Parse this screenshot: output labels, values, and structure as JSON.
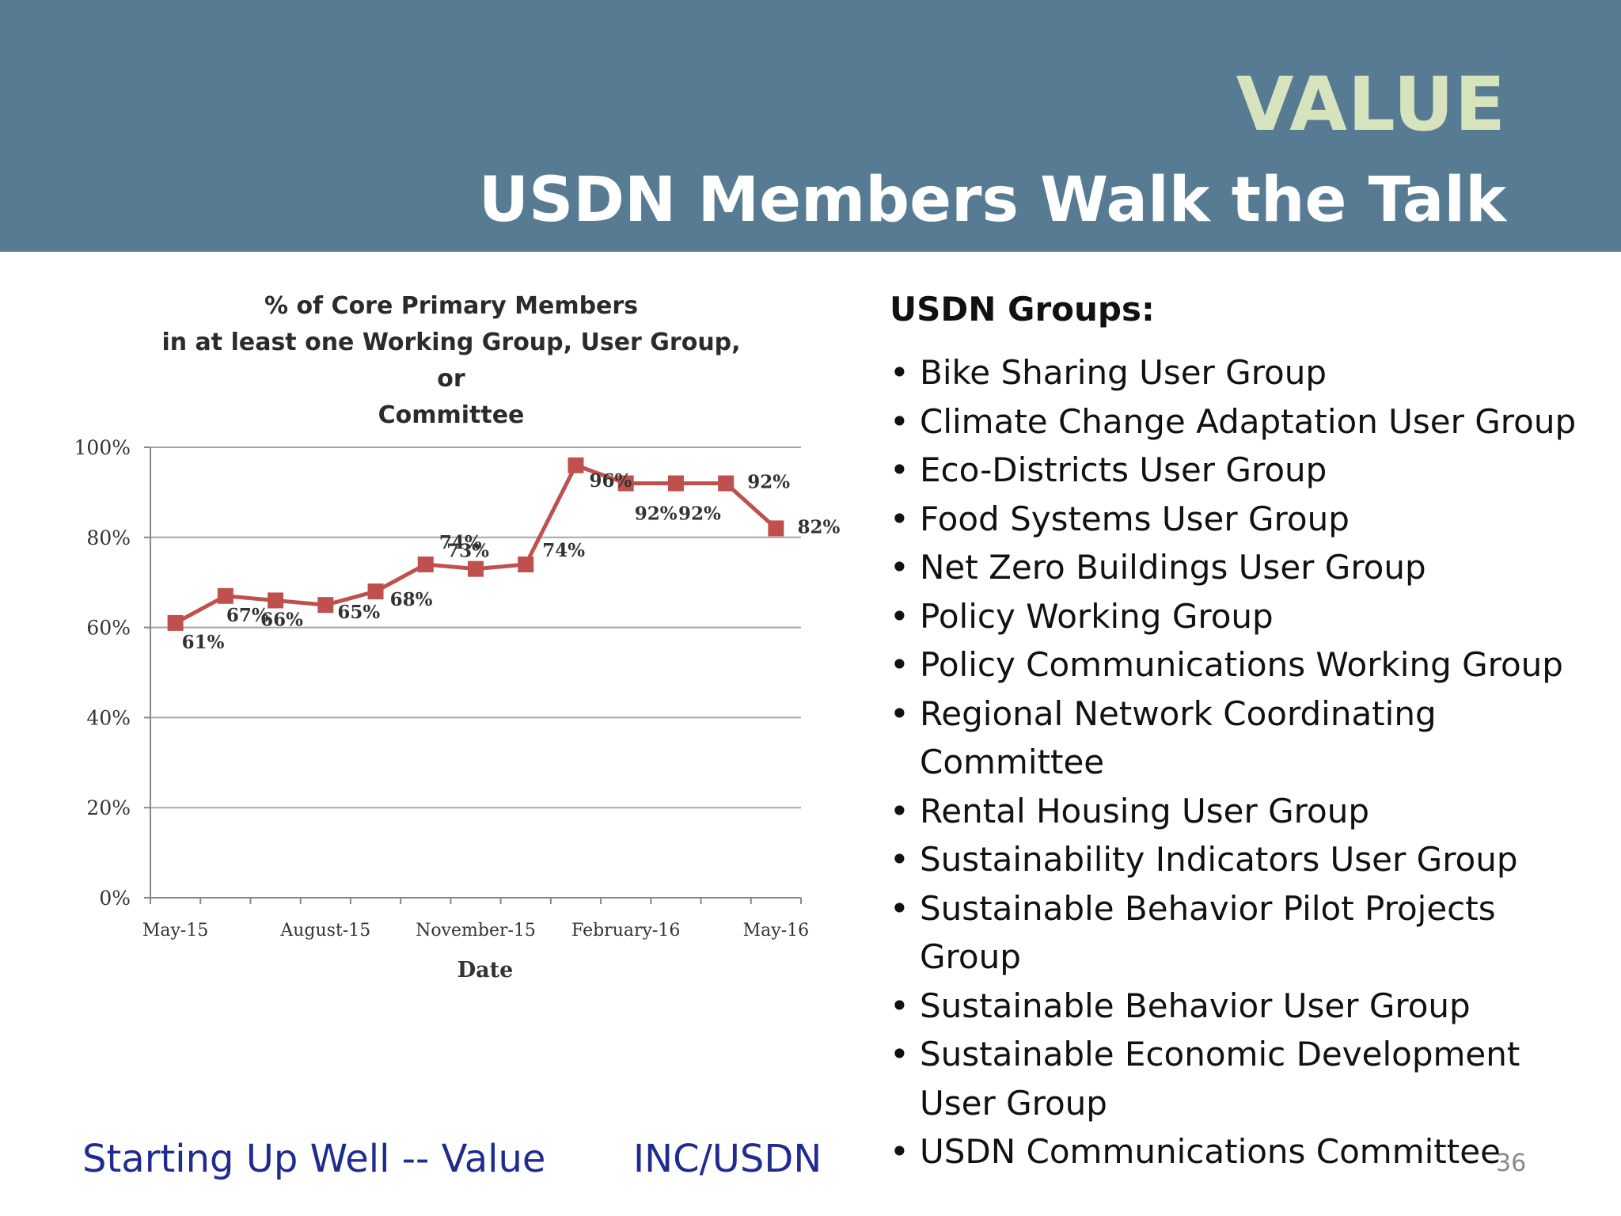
{
  "slide": {
    "title": "VALUE",
    "subtitle": "USDN Members Walk the Talk",
    "footer_left": "Starting Up Well -- Value",
    "footer_mid": "INC/USDN",
    "page_number": "36",
    "colors": {
      "header": "#577b93",
      "title": "#d7e3bd",
      "series": "#c0504d",
      "footer": "#1f2b8f"
    }
  },
  "groups": {
    "heading": "USDN Groups:",
    "items": [
      "Bike Sharing User Group",
      "Climate Change Adaptation User Group",
      "Eco-Districts User Group",
      "Food Systems User Group",
      "Net Zero Buildings User Group",
      "Policy Working Group",
      "Policy Communications Working Group",
      "Regional Network Coordinating Committee",
      "Rental Housing User Group",
      "Sustainability Indicators User Group",
      "Sustainable Behavior Pilot Projects Group",
      "Sustainable Behavior User Group",
      "Sustainable Economic Development User Group",
      "USDN Communications Committee"
    ]
  },
  "chart_data": {
    "type": "line",
    "title_lines": [
      "% of Core Primary Members",
      "in at least one Working Group, User Group, or",
      "Committee"
    ],
    "xlabel": "Date",
    "ylabel": "",
    "x": [
      "2015-05",
      "2015-06",
      "2015-07",
      "2015-08",
      "2015-09",
      "2015-10",
      "2015-11",
      "2015-12",
      "2016-01",
      "2016-02",
      "2016-03",
      "2016-04",
      "2016-05"
    ],
    "x_tick_labels": [
      "May-15",
      "August-15",
      "November-15",
      "February-16",
      "May-16"
    ],
    "y_tick_labels": [
      "0%",
      "20%",
      "40%",
      "60%",
      "80%",
      "100%"
    ],
    "ylim": [
      0,
      100
    ],
    "grid": true,
    "series": [
      {
        "name": "",
        "color": "#c0504d",
        "marker": "square",
        "values": [
          61,
          67,
          66,
          65,
          68,
          74,
          73,
          74,
          96,
          92,
          92,
          92,
          82
        ],
        "data_labels": [
          "61%",
          "67%",
          "66%",
          "65%",
          "68%",
          "74%",
          "73%",
          "74%",
          "96%",
          "92%",
          "92%",
          "92%",
          "82%"
        ]
      }
    ]
  }
}
